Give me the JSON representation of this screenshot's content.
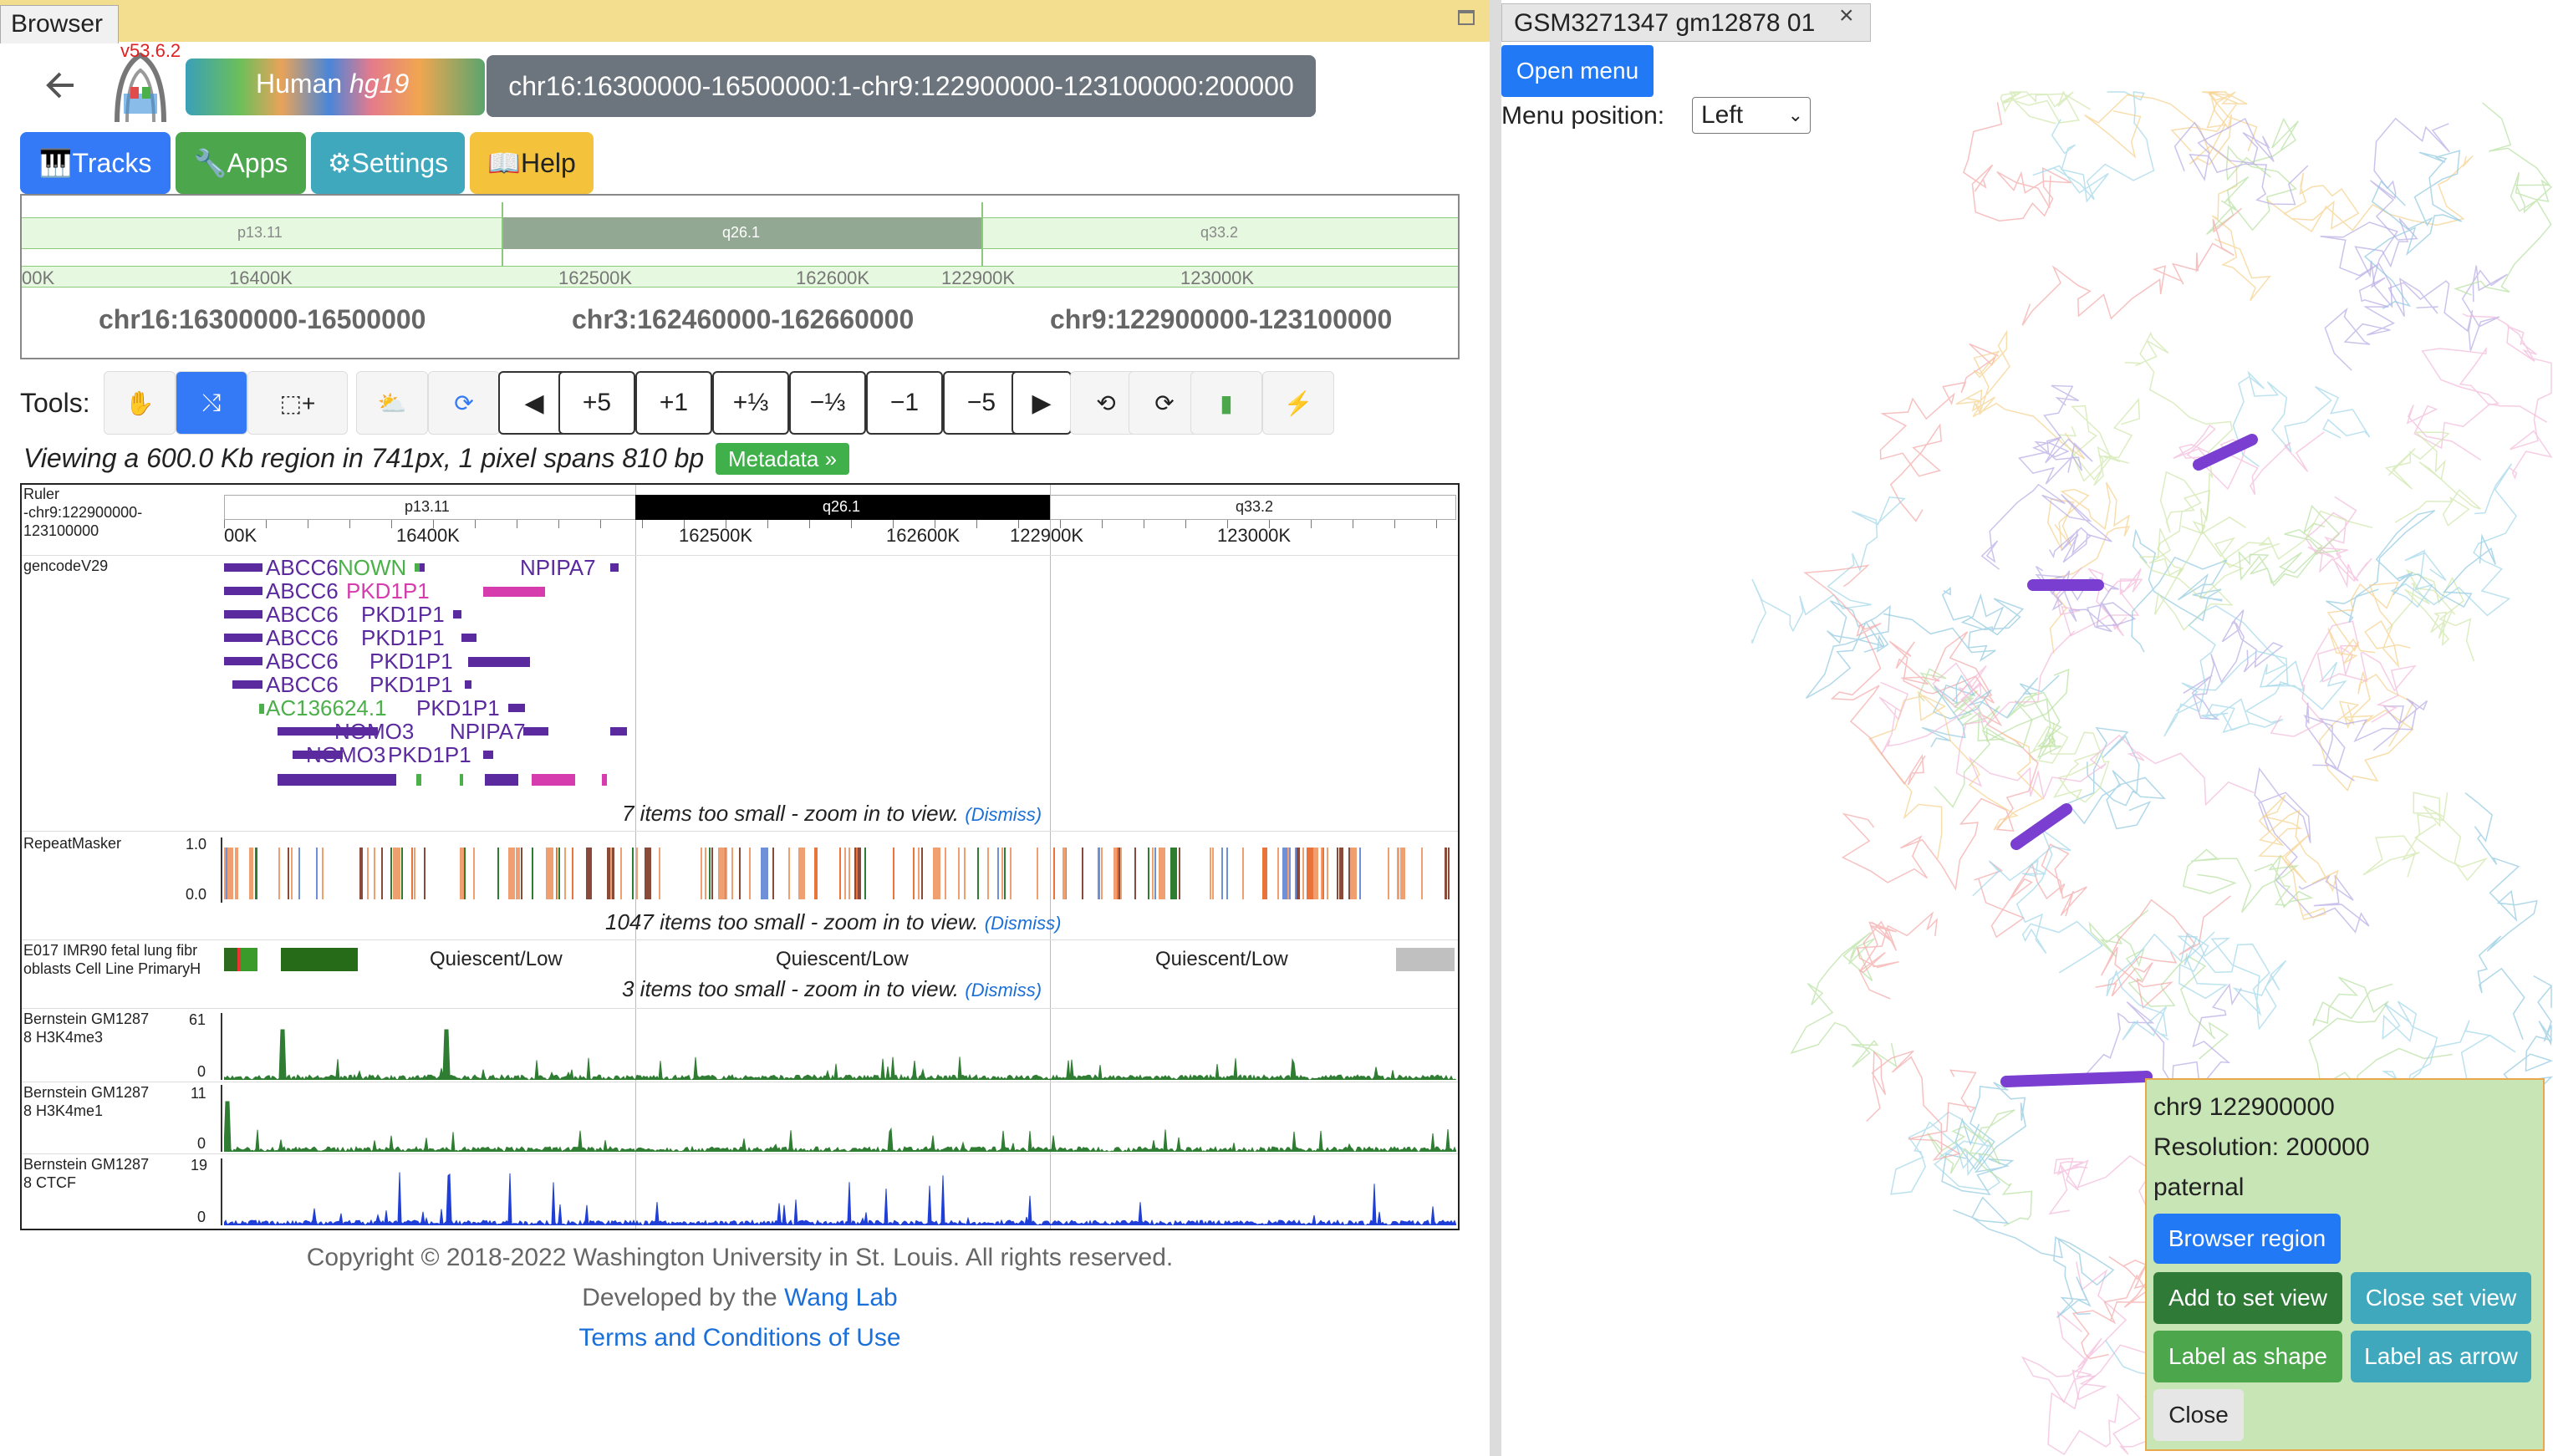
{
  "left_panel": {
    "tab_label": "Browser",
    "version": "v53.6.2",
    "genome_label": "Human",
    "genome_build": "hg19",
    "region_box": "chr16:16300000-16500000:1-chr9:122900000-123100000:200000",
    "nav_buttons": {
      "tracks": "🎹Tracks",
      "apps": "🔧Apps",
      "settings": "⚙Settings",
      "help": "📖Help"
    },
    "overview": {
      "bands": [
        "p13.11",
        "q26.1",
        "q33.2"
      ],
      "ticks": [
        "00K",
        "16400K",
        "162500K",
        "162600K",
        "122900K",
        "123000K"
      ],
      "regions": [
        "chr16:16300000-16500000",
        "chr3:162460000-162660000",
        "chr9:122900000-123100000"
      ]
    },
    "tools_label": "Tools:",
    "tool_icons": [
      "hand-icon",
      "reorder-icon",
      "zoom-select-icon",
      "weather-icon",
      "sync-icon"
    ],
    "nav_step_buttons": [
      "◀",
      "+5",
      "+1",
      "+⅓",
      "−⅓",
      "−1",
      "−5",
      "▶"
    ],
    "extra_icons": [
      "undo-icon",
      "redo-icon",
      "book-icon",
      "flash-icon"
    ],
    "viewing_text": "Viewing a 600.0 Kb region in 741px, 1 pixel spans 810 bp",
    "metadata_button": "Metadata »",
    "ruler": {
      "name_line1": "Ruler",
      "name_line2": "-chr9:122900000-",
      "name_line3": "123100000",
      "bands": [
        "p13.11",
        "q26.1",
        "q33.2"
      ],
      "ticks": [
        "00K",
        "16400K",
        "162500K",
        "162600K",
        "122900K",
        "123000K"
      ]
    },
    "genes_track": {
      "name": "gencodeV29",
      "rows": [
        [
          "ABCC6",
          "NOWN",
          "NPIPA7"
        ],
        [
          "ABCC6",
          "PKD1P1"
        ],
        [
          "ABCC6",
          "PKD1P1"
        ],
        [
          "ABCC6",
          "PKD1P1"
        ],
        [
          "ABCC6",
          "PKD1P1"
        ],
        [
          "ABCC6",
          "PKD1P1"
        ],
        [
          "AC136624.1",
          "PKD1P1"
        ],
        [
          "NOMO3",
          "NPIPA7"
        ],
        [
          "NOMO3",
          "PKD1P1"
        ]
      ],
      "too_small": "7 items too small - zoom in to view.",
      "dismiss": "(Dismiss)"
    },
    "repeat_track": {
      "name": "RepeatMasker",
      "ymax": "1.0",
      "ymin": "0.0",
      "too_small": "1047 items too small - zoom in to view.",
      "dismiss": "(Dismiss)"
    },
    "chromhmm_track": {
      "name_line1": "E017 IMR90 fetal lung fibr",
      "name_line2": "oblasts Cell Line PrimaryH",
      "state_labels": [
        "Quiescent/Low",
        "Quiescent/Low",
        "Quiescent/Low"
      ],
      "too_small": "3 items too small - zoom in to view.",
      "dismiss": "(Dismiss)"
    },
    "signal_tracks": [
      {
        "name_line1": "Bernstein GM1287",
        "name_line2": "8 H3K4me3",
        "ymax": "61",
        "ymin": "0",
        "color": "#2e7d32"
      },
      {
        "name_line1": "Bernstein GM1287",
        "name_line2": "8 H3K4me1",
        "ymax": "11",
        "ymin": "0",
        "color": "#2e7d32"
      },
      {
        "name_line1": "Bernstein GM1287",
        "name_line2": "8 CTCF",
        "ymax": "19",
        "ymin": "0",
        "color": "#1f3fd8"
      }
    ],
    "footer": {
      "copyright": "Copyright © 2018-2022 Washington University in St. Louis. All rights reserved.",
      "developed_by": "Developed by the ",
      "lab_link": "Wang Lab",
      "terms": "Terms and Conditions of Use"
    }
  },
  "right_panel": {
    "tab_label": "GSM3271347 gm12878 01",
    "open_menu": "Open menu",
    "menu_position_label": "Menu position:",
    "menu_position_value": "Left",
    "popup": {
      "line1": "chr9 122900000",
      "line2": "Resolution: 200000",
      "line3": "paternal",
      "browser_region": "Browser region",
      "add_to_set_view": "Add to set view",
      "close_set_view": "Close set view",
      "label_as_shape": "Label as shape",
      "label_as_arrow": "Label as arrow",
      "close": "Close"
    }
  },
  "colors": {
    "tab_bar": "#f3dd8f",
    "tracks_btn": "#3479f6",
    "apps_btn": "#4ca64c",
    "settings_btn": "#3fa8bd",
    "help_btn": "#f5c33b",
    "region_box": "#6c757d",
    "popup_bg": "#c8e6b5",
    "metadata_btn": "#3fb04a"
  }
}
